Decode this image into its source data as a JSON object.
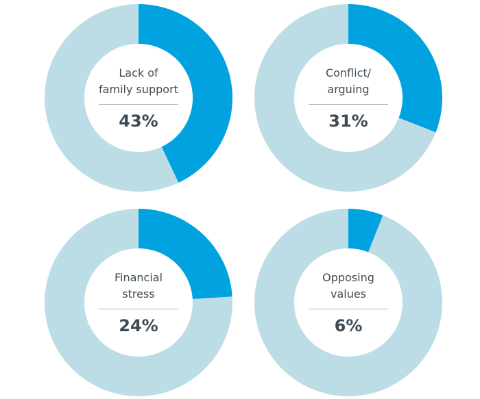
{
  "colors": {
    "highlight": "#00a2e0",
    "remainder": "#bcdde6",
    "center": "#ffffff",
    "text": "#3d4a54",
    "divider": "#a9b1b7"
  },
  "chart_data": [
    {
      "type": "pie",
      "categories": [
        "Lack of family support",
        "other"
      ],
      "values": [
        43,
        57
      ],
      "label": "Lack of\nfamily support",
      "value_label": "43%"
    },
    {
      "type": "pie",
      "categories": [
        "Conflict/arguing",
        "other"
      ],
      "values": [
        31,
        69
      ],
      "label": "Conflict/\narguing",
      "value_label": "31%"
    },
    {
      "type": "pie",
      "categories": [
        "Financial stress",
        "other"
      ],
      "values": [
        24,
        76
      ],
      "label": "Financial\nstress",
      "value_label": "24%"
    },
    {
      "type": "pie",
      "categories": [
        "Opposing values",
        "other"
      ],
      "values": [
        6,
        94
      ],
      "label": "Opposing\nvalues",
      "value_label": "6%"
    }
  ]
}
